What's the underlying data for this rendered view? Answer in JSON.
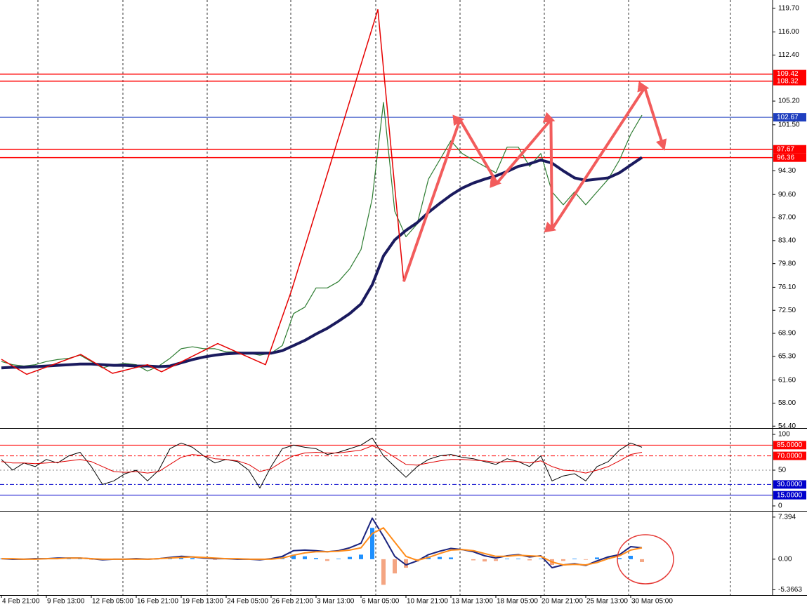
{
  "chart_data": [
    {
      "type": "line",
      "ylim": [
        54.1,
        121.0
      ],
      "yticks": [
        {
          "value": 119.7,
          "label": "119.70"
        },
        {
          "value": 116,
          "label": "116.00"
        },
        {
          "value": 112.4,
          "label": "112.40"
        },
        {
          "value": 105.2,
          "label": "105.20"
        },
        {
          "value": 101.5,
          "label": "101.50"
        },
        {
          "value": 94.3,
          "label": "94.30"
        },
        {
          "value": 90.6,
          "label": "90.60"
        },
        {
          "value": 87,
          "label": "87.00"
        },
        {
          "value": 83.4,
          "label": "83.40"
        },
        {
          "value": 79.8,
          "label": "79.80"
        },
        {
          "value": 76.1,
          "label": "76.10"
        },
        {
          "value": 72.5,
          "label": "72.50"
        },
        {
          "value": 68.9,
          "label": "68.90"
        },
        {
          "value": 65.3,
          "label": "65.30"
        },
        {
          "value": 61.6,
          "label": "61.60"
        },
        {
          "value": 58,
          "label": "58.00"
        },
        {
          "value": 54.4,
          "label": "54.40"
        }
      ],
      "levels": [
        {
          "value": 109.42,
          "label": "109.42",
          "color": "#ff0000"
        },
        {
          "value": 108.32,
          "label": "108.32",
          "color": "#ff0000"
        },
        {
          "value": 102.67,
          "label": "102.67",
          "color": "#1f3fbf"
        },
        {
          "value": 97.67,
          "label": "97.67",
          "color": "#ff0000"
        },
        {
          "value": 96.36,
          "label": "96.36",
          "color": "#ff0000"
        }
      ],
      "series": [
        {
          "color": "#2e7d32",
          "width": 1.2,
          "values": [
            64.5,
            64,
            63.8,
            64,
            64.5,
            64.8,
            65,
            65.5,
            64.5,
            63.5,
            64,
            64.2,
            64,
            63,
            63.8,
            65,
            66.5,
            66.8,
            66.5,
            66.5,
            66,
            66,
            65.8,
            65.5,
            65.8,
            67,
            72,
            73,
            76,
            76,
            77,
            79,
            82,
            90,
            105,
            88,
            84,
            86,
            93,
            96,
            99,
            97,
            96,
            95,
            94,
            98,
            98,
            95,
            97,
            91,
            89,
            91,
            89,
            91,
            93,
            96,
            100,
            103
          ]
        },
        {
          "color": "#1a1a5e",
          "width": 4,
          "values": [
            63.5,
            63.6,
            63.6,
            63.7,
            63.8,
            63.9,
            64,
            64.1,
            64.1,
            64,
            63.9,
            63.9,
            63.8,
            63.8,
            63.7,
            63.8,
            64.3,
            64.8,
            65.2,
            65.5,
            65.7,
            65.8,
            65.8,
            65.8,
            65.8,
            66.2,
            67,
            67.8,
            68.8,
            69.7,
            70.8,
            72,
            73.5,
            76.5,
            81,
            83.5,
            85,
            86.2,
            87.8,
            89.2,
            90.5,
            91.6,
            92.4,
            93,
            93.5,
            94.2,
            95,
            95.4,
            96,
            95.5,
            94.3,
            93.2,
            92.8,
            93,
            93.2,
            94,
            95.2,
            96.4
          ]
        },
        {
          "color": "#e60000",
          "width": 1.5,
          "x": [
            0,
            2.25,
            7.06,
            9.88,
            13,
            14.25,
            19.25,
            23.5,
            25.8,
            33.5,
            35.8
          ],
          "values": [
            64.85,
            62.5,
            65.6,
            62.65,
            64.0,
            62.9,
            67.3,
            64.0,
            75.5,
            119.5,
            77.0
          ]
        },
        {
          "color": "#f25c5c",
          "width": 4,
          "arrow": true,
          "x": [
            35.8,
            40.8,
            44.1,
            48.9,
            49.0,
            57.25,
            58.9
          ],
          "values": [
            77.0,
            102.3,
            92.4,
            102.3,
            85.2,
            107.3,
            98.1
          ]
        }
      ]
    },
    {
      "type": "line",
      "ylim": [
        -6.9,
        106.9
      ],
      "yticks": [
        100,
        50,
        0
      ],
      "levels": [
        {
          "value": 85,
          "label": "85.0000",
          "color": "#ff0000"
        },
        {
          "value": 70,
          "label": "70.0000",
          "color": "#ff0000"
        },
        {
          "value": 30,
          "label": "30.0000",
          "color": "#0000cc"
        },
        {
          "value": 15,
          "label": "15.0000",
          "color": "#0000cc"
        }
      ],
      "series": [
        {
          "color": "#000000",
          "width": 1,
          "values": [
            65,
            50,
            60,
            55,
            65,
            60,
            70,
            75,
            55,
            30,
            35,
            45,
            50,
            35,
            50,
            80,
            88,
            82,
            70,
            60,
            65,
            62,
            50,
            25,
            55,
            80,
            85,
            82,
            80,
            72,
            75,
            80,
            85,
            95,
            70,
            55,
            40,
            55,
            65,
            70,
            72,
            68,
            66,
            62,
            58,
            66,
            62,
            55,
            70,
            35,
            42,
            45,
            35,
            55,
            62,
            78,
            88,
            82
          ]
        },
        {
          "color": "#e00000",
          "width": 1,
          "values": [
            62,
            60,
            60,
            59,
            60,
            61,
            63,
            65,
            62,
            55,
            48,
            47,
            48,
            46,
            48,
            58,
            68,
            72,
            70,
            66,
            65,
            63,
            58,
            48,
            52,
            62,
            70,
            74,
            75,
            74,
            74,
            76,
            78,
            84,
            78,
            68,
            58,
            57,
            60,
            63,
            65,
            65,
            64,
            63,
            61,
            62,
            62,
            60,
            63,
            55,
            50,
            49,
            46,
            50,
            55,
            63,
            72,
            75
          ]
        }
      ]
    },
    {
      "type": "bar",
      "ylim": [
        -6.3,
        8.24
      ],
      "yticks": [
        7.394,
        {
          "value": 0,
          "label": "0.00"
        },
        -5.3663
      ],
      "color": "#1e90ff",
      "negative_color": "#f4a582",
      "values": [
        0.1,
        0.1,
        0,
        -0.1,
        0.1,
        0.1,
        0.1,
        0.2,
        -0.1,
        -0.2,
        -0.1,
        0,
        0.1,
        -0.1,
        0.1,
        0.3,
        0.4,
        0.2,
        0,
        -0.1,
        0.1,
        0,
        -0.1,
        -0.2,
        0.1,
        0.5,
        0.8,
        0.5,
        0.2,
        -0.3,
        0.1,
        0.4,
        0.8,
        5.5,
        -4.5,
        -2.5,
        -1.5,
        -0.4,
        0.5,
        0.4,
        0.3,
        0,
        -0.2,
        -0.4,
        -0.3,
        0.1,
        0.1,
        -0.2,
        0.1,
        -1.0,
        -0.3,
        0.1,
        -0.1,
        0.3,
        0.3,
        0.2,
        0.6,
        -0.5
      ],
      "categories": [
        "4 Feb 21:00",
        null,
        null,
        null,
        "9 Feb 13:00",
        null,
        null,
        null,
        "12 Feb 05:00",
        null,
        null,
        null,
        "16 Feb 21:00",
        null,
        null,
        null,
        "19 Feb 13:00",
        null,
        null,
        null,
        "24 Feb 05:00",
        null,
        null,
        null,
        "26 Feb 21:00",
        null,
        null,
        null,
        "3 Mar 13:00",
        null,
        null,
        null,
        "6 Mar 05:00",
        null,
        null,
        null,
        "10 Mar 21:00",
        null,
        null,
        null,
        "13 Mar 13:00",
        null,
        null,
        null,
        "18 Mar 05:00",
        null,
        null,
        null,
        "20 Mar 21:00",
        null,
        null,
        null,
        "25 Mar 13:00",
        null,
        null,
        null,
        "30 Mar 05:00",
        null
      ],
      "series": [
        {
          "color": "#1a237e",
          "width": 2,
          "values": [
            0.1,
            0,
            0,
            0.1,
            0.1,
            0.2,
            0.2,
            0.2,
            0.1,
            -0.1,
            0,
            0,
            0.1,
            0,
            0.1,
            0.3,
            0.5,
            0.4,
            0.2,
            0.1,
            0.1,
            0,
            0,
            -0.1,
            0.1,
            0.5,
            1.5,
            1.6,
            1.5,
            1.3,
            1.5,
            2.0,
            2.8,
            7.2,
            4.0,
            0.5,
            -1.0,
            -0.3,
            0.8,
            1.4,
            1.9,
            1.7,
            1.3,
            0.6,
            0.2,
            0.6,
            0.8,
            0.4,
            0.6,
            -1.5,
            -1.0,
            -0.8,
            -1.1,
            -0.3,
            0.4,
            0.8,
            2.2,
            2.0
          ]
        },
        {
          "color": "#ff8c1a",
          "width": 2,
          "values": [
            0.1,
            0.1,
            0,
            0,
            0.1,
            0.1,
            0.2,
            0.2,
            0.1,
            0,
            0,
            0,
            0,
            0,
            0.1,
            0.2,
            0.3,
            0.4,
            0.3,
            0.2,
            0.1,
            0.1,
            0,
            0,
            0,
            0.2,
            0.7,
            1.1,
            1.3,
            1.3,
            1.4,
            1.6,
            2.0,
            4.5,
            5.5,
            3.0,
            0.5,
            -0.2,
            0.3,
            1.0,
            1.6,
            1.7,
            1.5,
            1.0,
            0.5,
            0.5,
            0.7,
            0.6,
            0.5,
            -0.5,
            -1.0,
            -0.9,
            -1.0,
            -0.6,
            0.1,
            0.6,
            1.6,
            2.0
          ]
        }
      ]
    }
  ]
}
